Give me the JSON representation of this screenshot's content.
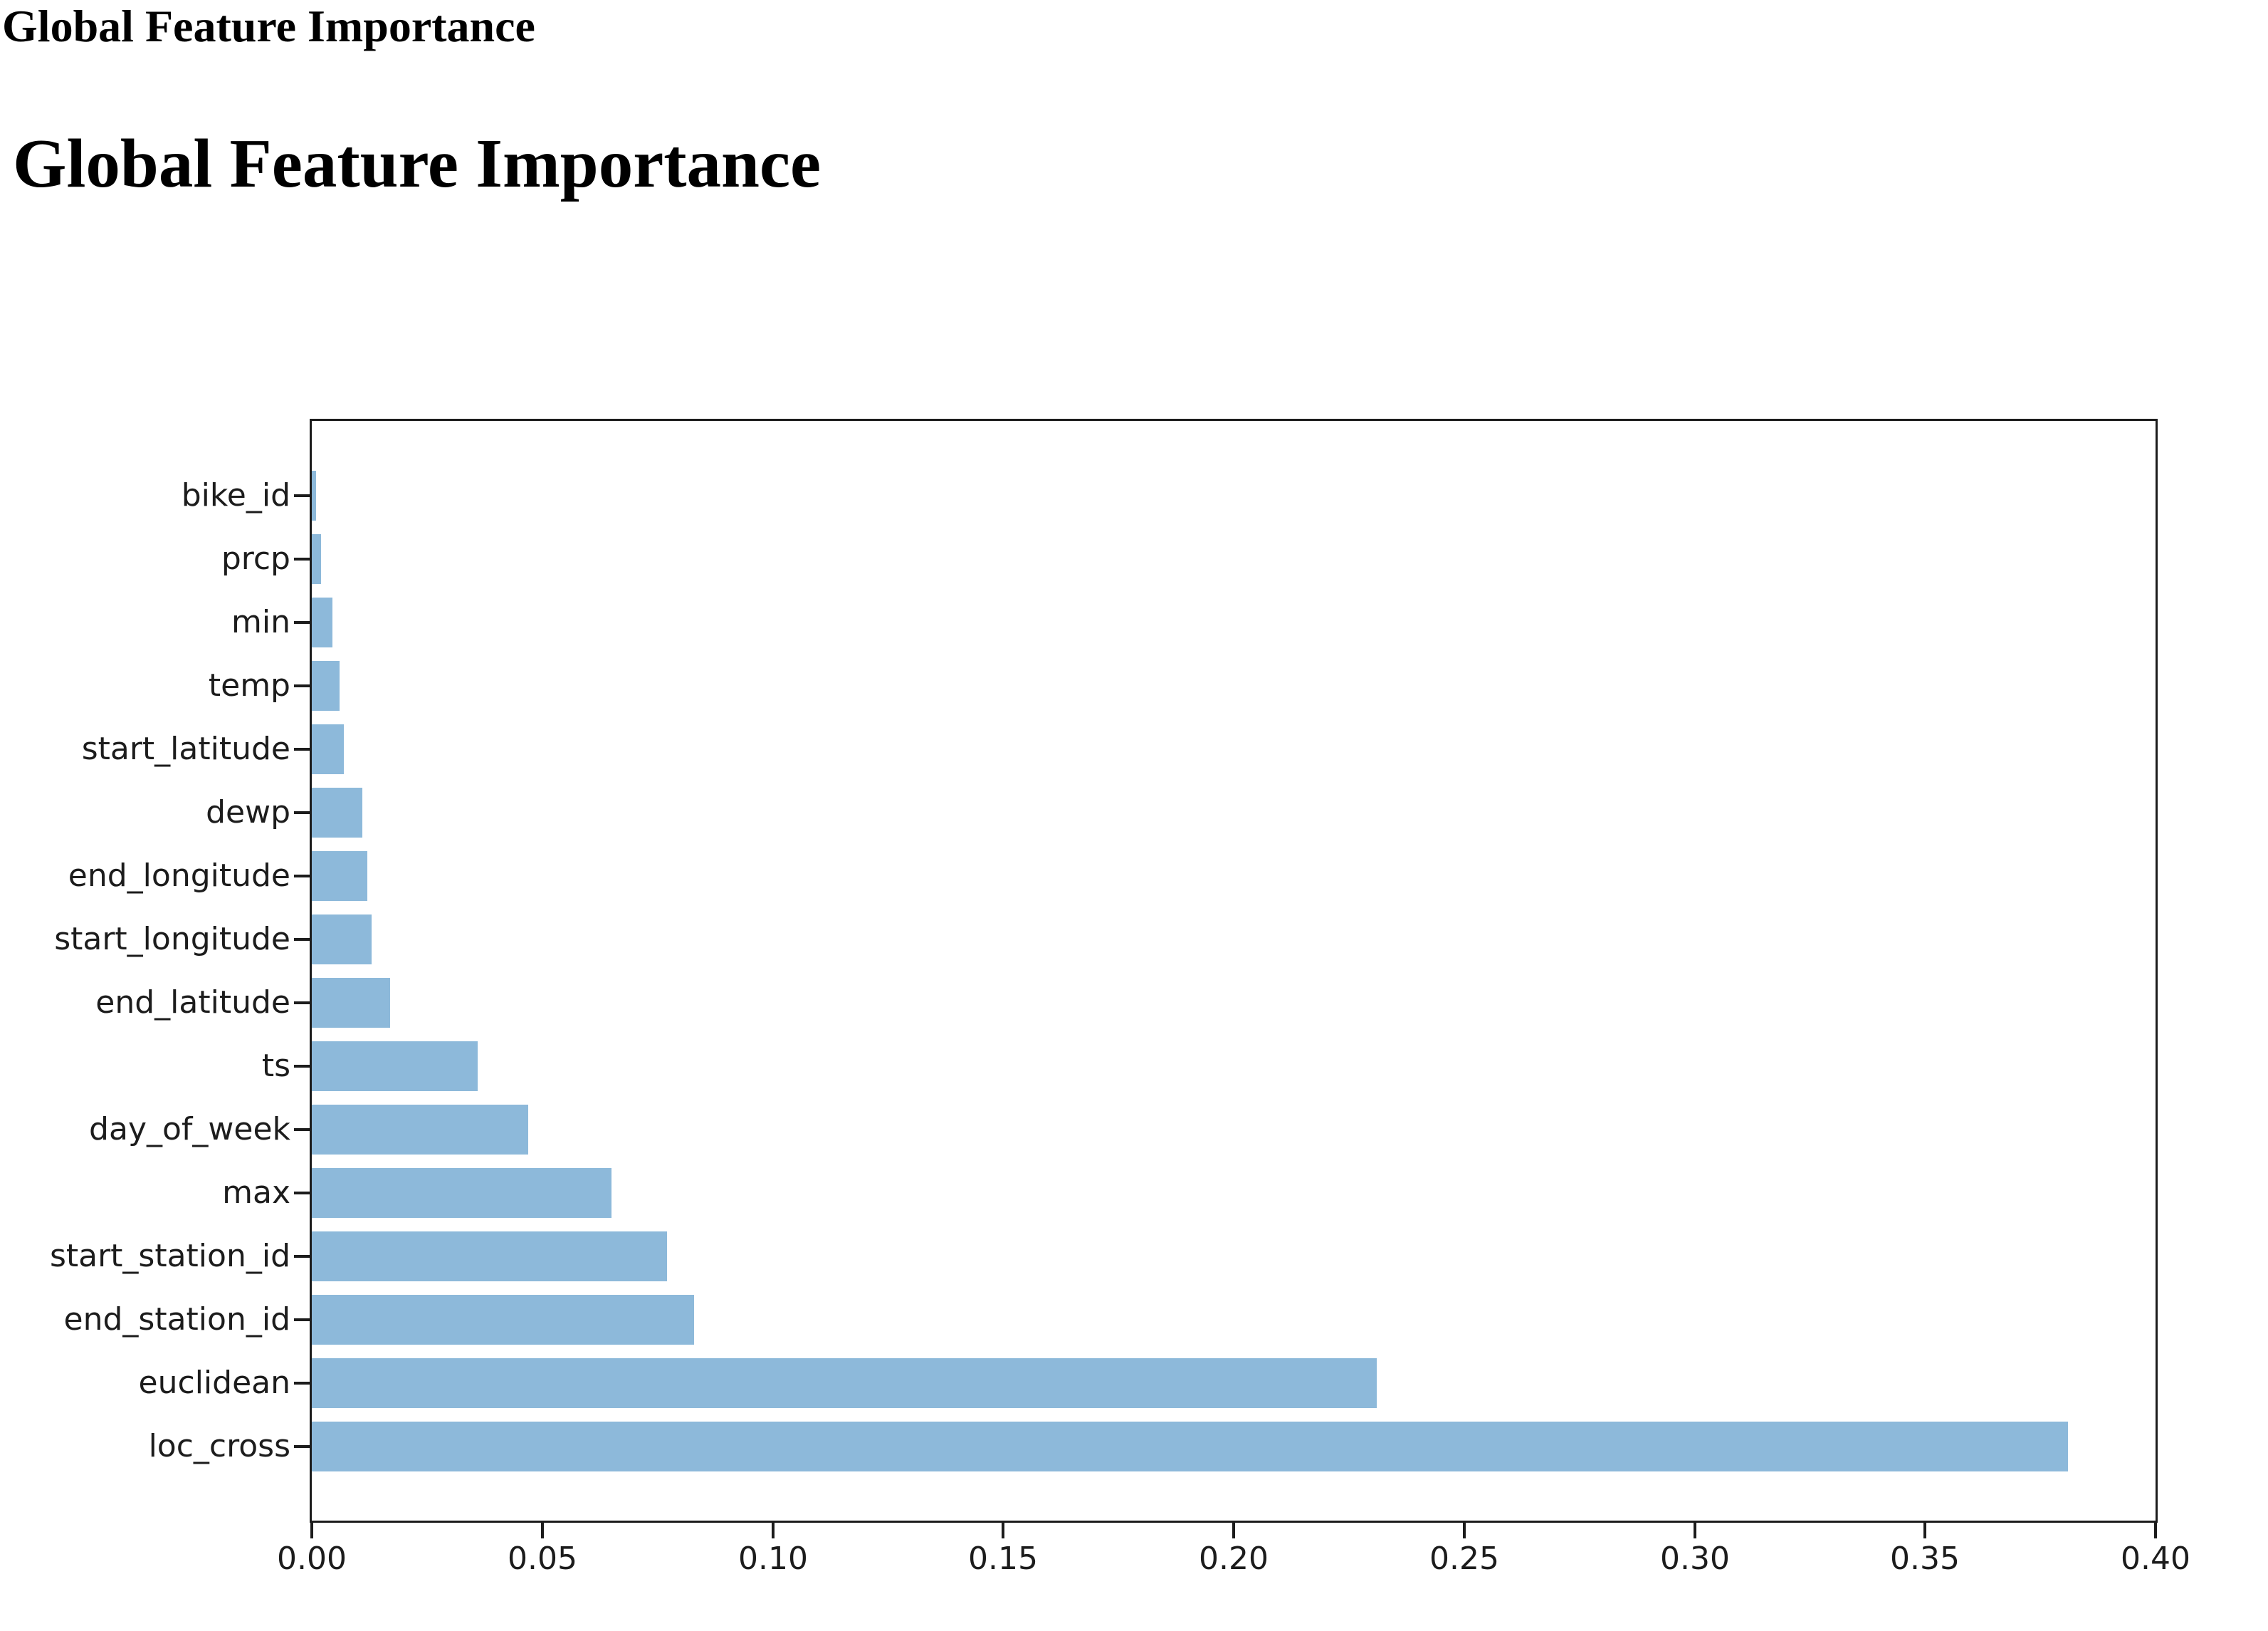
{
  "page": {
    "small_heading": "Global Feature Importance",
    "main_heading": "Global Feature Importance"
  },
  "chart_data": {
    "type": "bar",
    "orientation": "horizontal",
    "title": "",
    "xlabel": "",
    "ylabel": "",
    "category_order": "top_to_bottom",
    "categories": [
      "bike_id",
      "prcp",
      "min",
      "temp",
      "start_latitude",
      "dewp",
      "end_longitude",
      "start_longitude",
      "end_latitude",
      "ts",
      "day_of_week",
      "max",
      "start_station_id",
      "end_station_id",
      "euclidean",
      "loc_cross"
    ],
    "values": [
      0.001,
      0.002,
      0.0045,
      0.006,
      0.007,
      0.011,
      0.012,
      0.013,
      0.017,
      0.036,
      0.047,
      0.065,
      0.077,
      0.083,
      0.231,
      0.381
    ],
    "xlim": [
      0.0,
      0.4
    ],
    "x_ticks": [
      0.0,
      0.05,
      0.1,
      0.15,
      0.2,
      0.25,
      0.3,
      0.35,
      0.4
    ],
    "x_tick_format_decimals": 2,
    "grid": false,
    "legend": null,
    "bar_color": "#8DB9DA",
    "axis_color": "#1c1c1c",
    "text_color": "#000000",
    "background_color": "#ffffff"
  }
}
